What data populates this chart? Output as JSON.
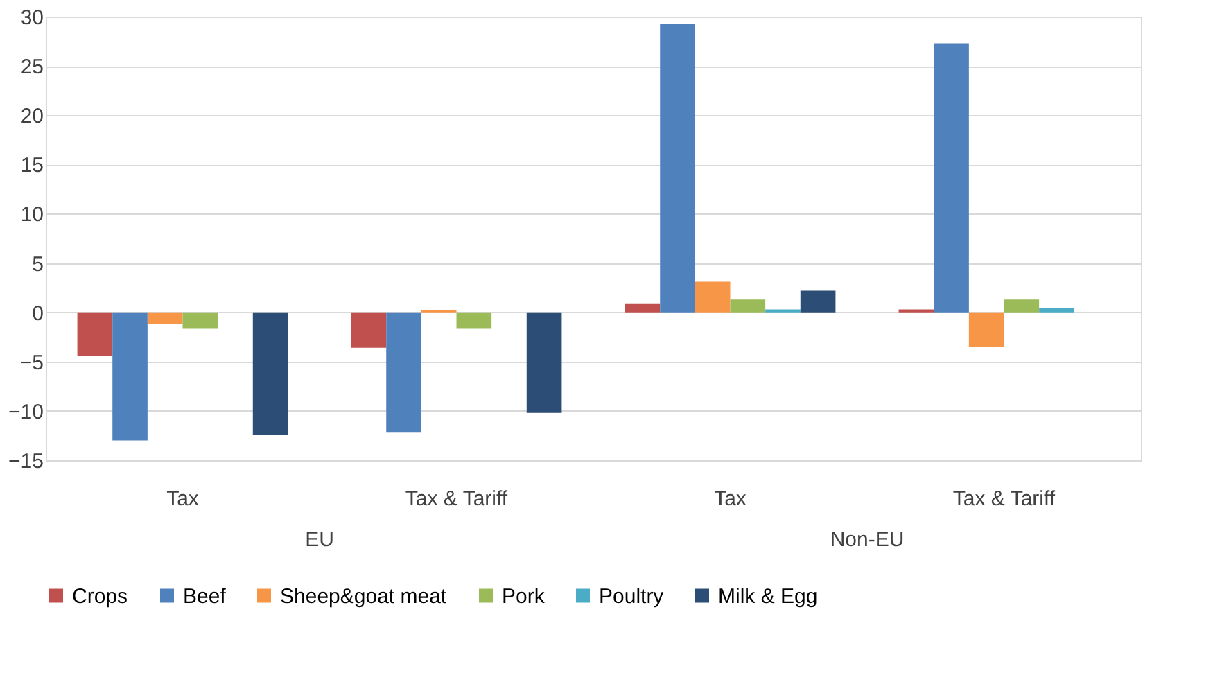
{
  "chart_data": {
    "type": "bar",
    "categories": [
      "Tax",
      "Tax & Tariff",
      "Tax",
      "Tax & Tariff"
    ],
    "annotations": [
      "EU",
      "Non-EU"
    ],
    "series": [
      {
        "name": "Crops",
        "color": "#c0504d",
        "values": [
          -4.4,
          -3.6,
          0.9,
          0.3
        ]
      },
      {
        "name": "Beef",
        "color": "#4f81bd",
        "values": [
          -13.0,
          -12.2,
          29.3,
          27.3
        ]
      },
      {
        "name": "Sheep&goat meat",
        "color": "#f79646",
        "values": [
          -1.2,
          0.2,
          3.1,
          -3.5
        ]
      },
      {
        "name": "Pork",
        "color": "#9bbb59",
        "values": [
          -1.6,
          -1.6,
          1.3,
          1.3
        ]
      },
      {
        "name": "Poultry",
        "color": "#4bacc6",
        "values": [
          0,
          0,
          0.3,
          0.4
        ]
      },
      {
        "name": "Milk & Egg",
        "color": "#2c4d75",
        "values": [
          -12.4,
          -10.2,
          2.2,
          0
        ]
      }
    ],
    "ylim": [
      -15,
      30
    ],
    "yticks": [
      -15,
      -10,
      -5,
      0,
      5,
      10,
      15,
      20,
      25,
      30
    ],
    "grid": "y",
    "legend": "bottom"
  }
}
